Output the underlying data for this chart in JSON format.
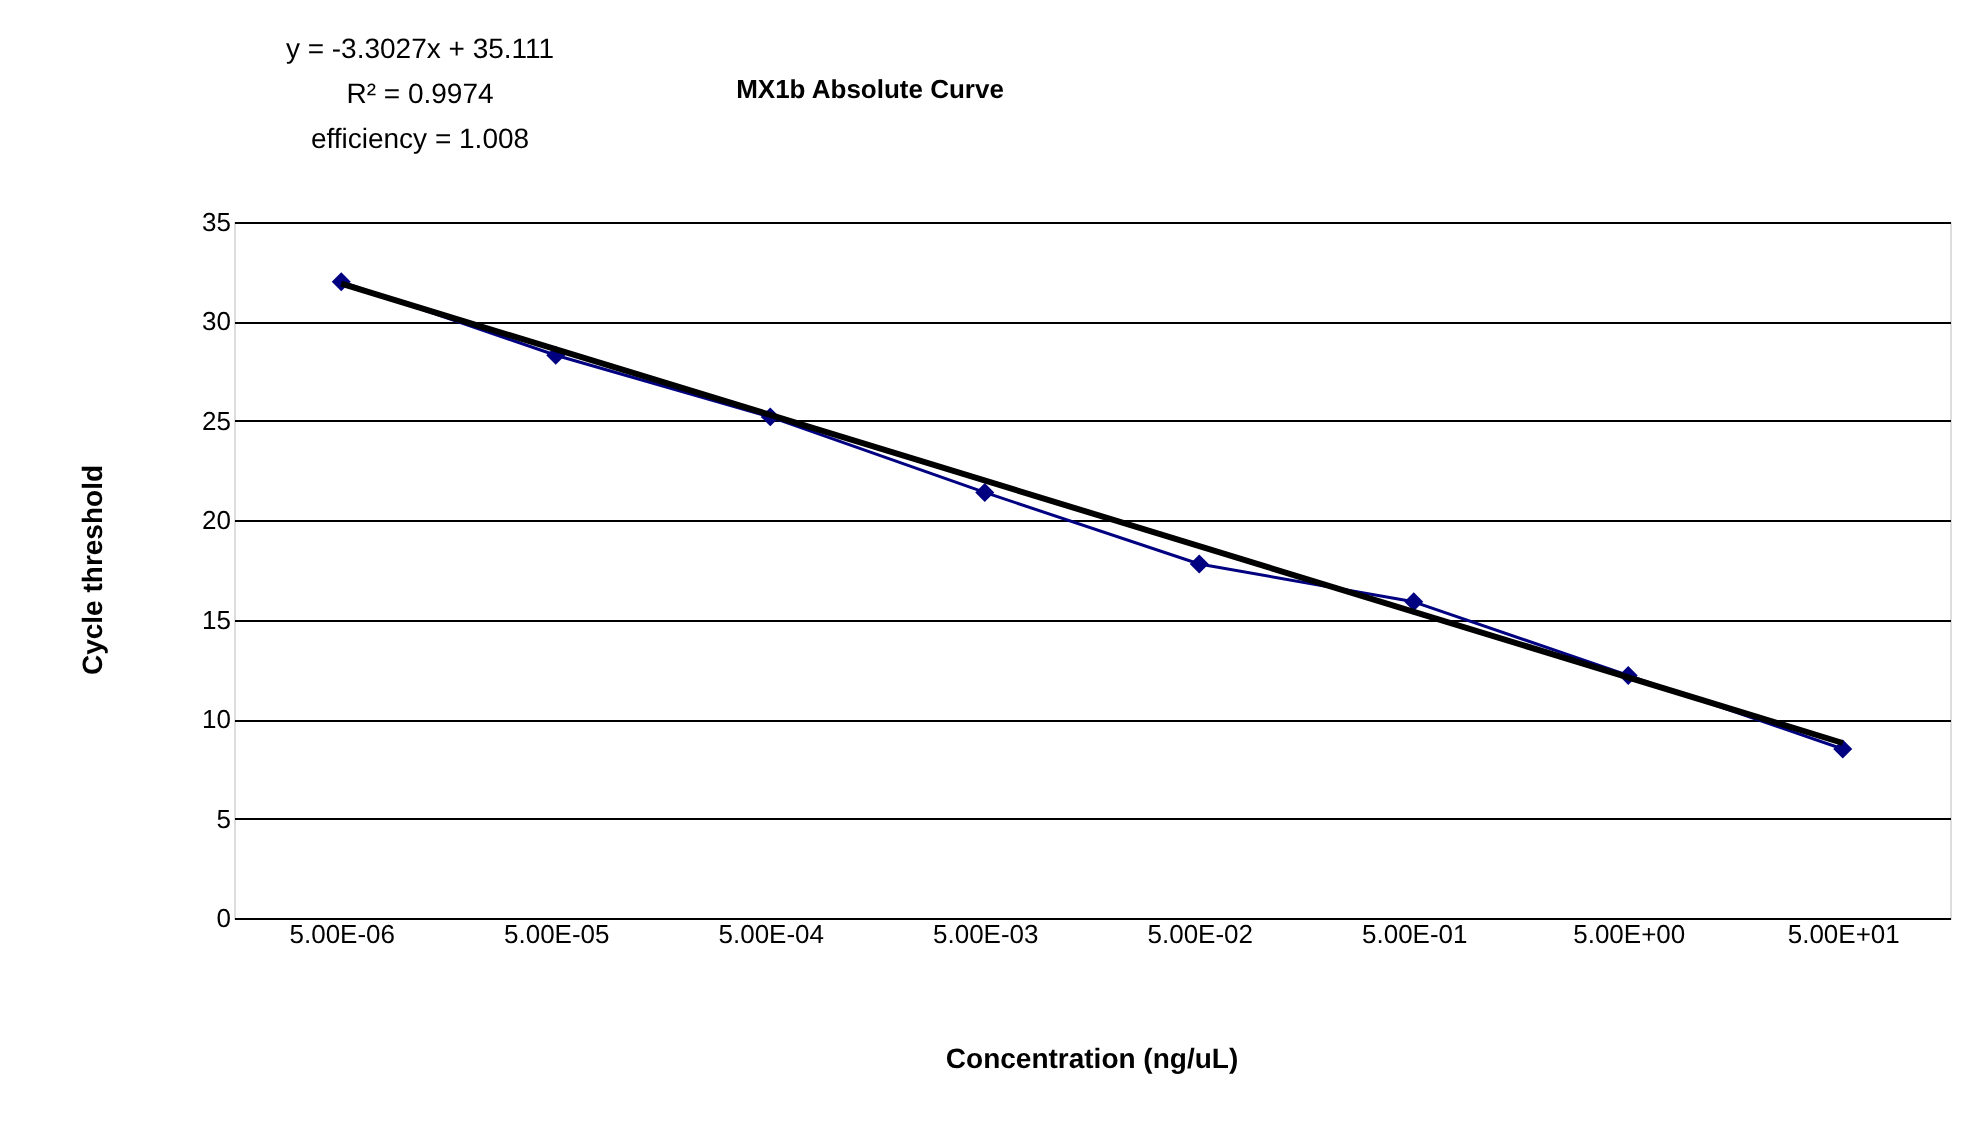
{
  "chart_data": {
    "type": "line",
    "title": "MX1b Absolute Curve",
    "xlabel": "Concentration (ng/uL)",
    "ylabel": "Cycle threshold",
    "categories": [
      "5.00E-06",
      "5.00E-05",
      "5.00E-04",
      "5.00E-03",
      "5.00E-02",
      "5.00E-01",
      "5.00E+00",
      "5.00E+01"
    ],
    "series": [
      {
        "color": "#000080",
        "marker": "diamond",
        "values": [
          32.0,
          28.3,
          25.2,
          21.4,
          17.8,
          15.9,
          12.2,
          8.5
        ]
      },
      {
        "type": "line",
        "color": "#000000",
        "marker": "none",
        "x": [
          "5.00E-06",
          "5.00E+01"
        ],
        "values": [
          31.9,
          8.8
        ]
      }
    ],
    "ylim": [
      0,
      35
    ],
    "yticks": [
      0,
      5,
      10,
      15,
      20,
      25,
      30,
      35
    ],
    "grid": "y",
    "annotations": [
      "y = -3.3027x + 35.111",
      "R² = 0.9974",
      "efficiency = 1.008"
    ]
  }
}
